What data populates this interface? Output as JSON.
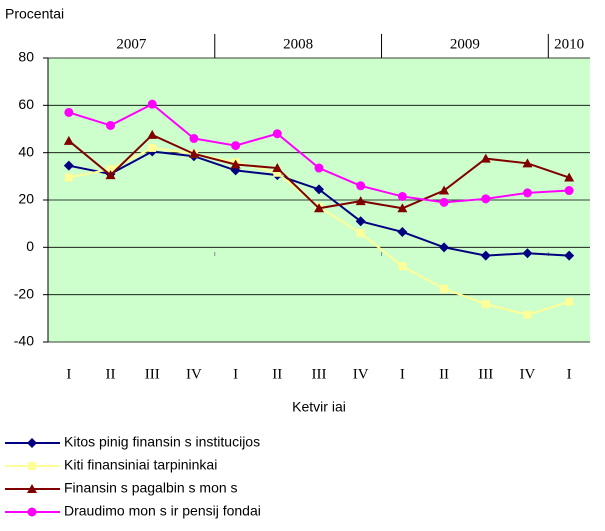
{
  "chart_data": {
    "type": "line",
    "y_axis_label": "Procentai",
    "x_axis_label": "Ketvir iai",
    "categories": [
      "I",
      "II",
      "III",
      "IV",
      "I",
      "II",
      "III",
      "IV",
      "I",
      "II",
      "III",
      "IV",
      "I"
    ],
    "year_categories": [
      "2007",
      null,
      null,
      null,
      "2008",
      null,
      null,
      null,
      "2009",
      null,
      null,
      null,
      "2010"
    ],
    "ylim": [
      -40,
      80
    ],
    "yticks": [
      -40,
      -20,
      0,
      20,
      40,
      60,
      80
    ],
    "grid": true,
    "background": "#ccffcc",
    "legend": "bottom",
    "series": [
      {
        "name": "Kitos pinig   finansin s institucijos",
        "color": "#000080",
        "marker": "diamond",
        "values": [
          34.5,
          31,
          40.5,
          38.5,
          32.5,
          30.5,
          24.5,
          11,
          6.5,
          0,
          -3.5,
          -2.5,
          -3.5
        ]
      },
      {
        "name": "Kiti finansiniai tarpininkai",
        "color": "#ffff99",
        "marker": "square",
        "values": [
          29.5,
          33,
          42,
          39.5,
          36,
          31.5,
          17,
          6,
          -8,
          -17.5,
          -24,
          -28.5,
          -23
        ]
      },
      {
        "name": "Finansin s pagalbin s mon s",
        "color": "#800000",
        "marker": "triangle",
        "values": [
          45,
          30.5,
          47.5,
          39.5,
          35,
          33.5,
          16.5,
          19.5,
          16.5,
          24,
          37.5,
          35.5,
          29.5
        ]
      },
      {
        "name": "Draudimo mon s ir pensij  fondai",
        "color": "#ff00ff",
        "marker": "circle",
        "values": [
          57,
          51.5,
          60.5,
          46,
          43,
          48,
          33.5,
          26,
          21.5,
          19,
          20.5,
          23,
          24
        ]
      }
    ]
  }
}
